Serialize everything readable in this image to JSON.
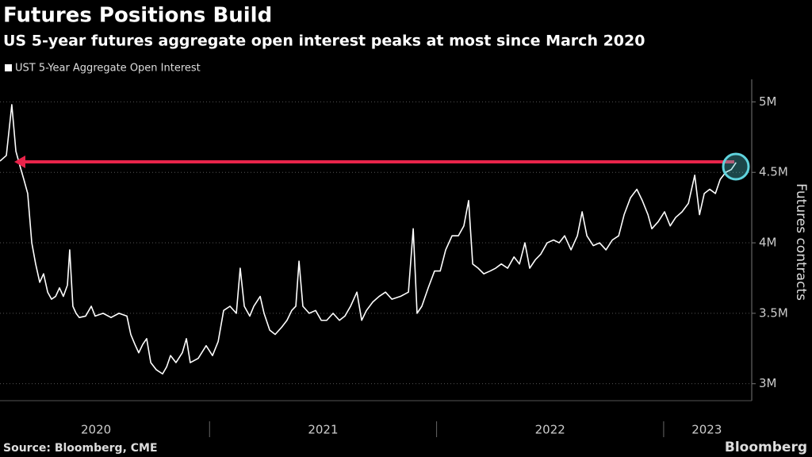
{
  "chart_data": {
    "type": "line",
    "title": "Futures Positions Build",
    "subtitle": "US 5-year futures aggregate open interest peaks at most since March 2020",
    "y_axis_label": "Futures contracts",
    "source": "Source: Bloomberg, CME",
    "brand": "Bloomberg",
    "x": [
      2020.077,
      2020.105,
      2020.129,
      2020.147,
      2020.164,
      2020.182,
      2020.199,
      2020.217,
      2020.234,
      2020.252,
      2020.269,
      2020.287,
      2020.304,
      2020.322,
      2020.339,
      2020.356,
      2020.374,
      2020.384,
      2020.398,
      2020.412,
      2020.426,
      2020.454,
      2020.479,
      2020.496,
      2020.531,
      2020.566,
      2020.601,
      2020.636,
      2020.653,
      2020.671,
      2020.688,
      2020.706,
      2020.723,
      2020.741,
      2020.765,
      2020.793,
      2020.811,
      2020.828,
      2020.852,
      2020.88,
      2020.898,
      2020.915,
      2020.95,
      2020.985,
      2021.013,
      2021.038,
      2021.062,
      2021.09,
      2021.118,
      2021.135,
      2021.153,
      2021.177,
      2021.195,
      2021.223,
      2021.24,
      2021.265,
      2021.289,
      2021.317,
      2021.341,
      2021.362,
      2021.38,
      2021.394,
      2021.411,
      2021.439,
      2021.467,
      2021.492,
      2021.516,
      2021.544,
      2021.572,
      2021.596,
      2021.621,
      2021.649,
      2021.67,
      2021.691,
      2021.719,
      2021.747,
      2021.775,
      2021.803,
      2021.841,
      2021.876,
      2021.897,
      2021.914,
      2021.935,
      2021.963,
      2021.991,
      2022.016,
      2022.04,
      2022.068,
      2022.096,
      2022.12,
      2022.141,
      2022.159,
      2022.183,
      2022.208,
      2022.236,
      2022.26,
      2022.285,
      2022.313,
      2022.341,
      2022.365,
      2022.389,
      2022.41,
      2022.435,
      2022.459,
      2022.487,
      2022.515,
      2022.54,
      2022.564,
      2022.592,
      2022.62,
      2022.641,
      2022.662,
      2022.69,
      2022.718,
      2022.746,
      2022.774,
      2022.802,
      2022.826,
      2022.854,
      2022.882,
      2022.906,
      2022.931,
      2022.948,
      2022.976,
      2023.004,
      2023.029,
      2023.053,
      2023.081,
      2023.109,
      2023.137,
      2023.158,
      2023.179,
      2023.203,
      2023.228,
      2023.249,
      2023.273,
      2023.298,
      2023.319
    ],
    "series": [
      {
        "name": "UST 5-Year Aggregate Open Interest",
        "color": "#ffffff",
        "values": [
          4580000,
          4620000,
          4980000,
          4650000,
          4550000,
          4450000,
          4350000,
          4000000,
          3850000,
          3720000,
          3780000,
          3650000,
          3600000,
          3620000,
          3680000,
          3620000,
          3700000,
          3950000,
          3550000,
          3500000,
          3470000,
          3480000,
          3550000,
          3480000,
          3500000,
          3470000,
          3500000,
          3480000,
          3350000,
          3280000,
          3220000,
          3280000,
          3320000,
          3150000,
          3100000,
          3070000,
          3120000,
          3200000,
          3150000,
          3220000,
          3320000,
          3150000,
          3180000,
          3270000,
          3200000,
          3300000,
          3520000,
          3550000,
          3500000,
          3820000,
          3550000,
          3480000,
          3550000,
          3620000,
          3500000,
          3380000,
          3350000,
          3400000,
          3450000,
          3520000,
          3550000,
          3870000,
          3550000,
          3500000,
          3520000,
          3450000,
          3450000,
          3500000,
          3450000,
          3480000,
          3550000,
          3650000,
          3450000,
          3520000,
          3580000,
          3620000,
          3650000,
          3600000,
          3620000,
          3650000,
          4100000,
          3500000,
          3550000,
          3680000,
          3800000,
          3800000,
          3950000,
          4050000,
          4050000,
          4120000,
          4300000,
          3850000,
          3820000,
          3780000,
          3800000,
          3820000,
          3850000,
          3820000,
          3900000,
          3850000,
          4000000,
          3820000,
          3880000,
          3920000,
          4000000,
          4020000,
          4000000,
          4050000,
          3950000,
          4050000,
          4220000,
          4050000,
          3980000,
          4000000,
          3950000,
          4020000,
          4050000,
          4200000,
          4320000,
          4380000,
          4300000,
          4200000,
          4100000,
          4150000,
          4220000,
          4120000,
          4180000,
          4220000,
          4280000,
          4480000,
          4200000,
          4350000,
          4380000,
          4350000,
          4450000,
          4500000,
          4520000,
          4570000
        ]
      }
    ],
    "xlim": [
      2020.077,
      2023.388
    ],
    "xticks": [
      {
        "value": 2020.5,
        "label": "2020"
      },
      {
        "value": 2021.5,
        "label": "2021"
      },
      {
        "value": 2022.5,
        "label": "2022"
      },
      {
        "value": 2023.19,
        "label": "2023"
      }
    ],
    "xminor_ticks": [
      2021,
      2022,
      2023
    ],
    "ylim": [
      2880000,
      5160000
    ],
    "yticks": [
      {
        "value": 3000000,
        "label": "3M"
      },
      {
        "value": 3500000,
        "label": "3.5M"
      },
      {
        "value": 4000000,
        "label": "4M"
      },
      {
        "value": 4500000,
        "label": "4.5M"
      },
      {
        "value": 5000000,
        "label": "5M"
      }
    ],
    "grid": true,
    "legend": "top-left"
  }
}
